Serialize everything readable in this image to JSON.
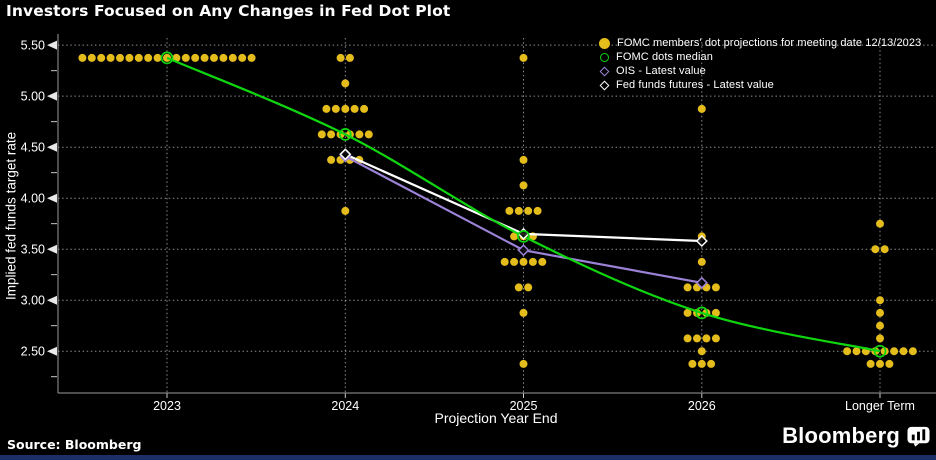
{
  "footer": {
    "source": "Source: Bloomberg",
    "brand": "Bloomberg"
  },
  "colors": {
    "background": "#000000",
    "text": "#FFFFFF",
    "grid": "#C8C8C8",
    "footer_bar": "#1D2F66"
  },
  "chart_data": {
    "type": "scatter",
    "title": "Investors Focused on Any Changes in Fed Dot Plot",
    "xlabel": "Projection Year End",
    "ylabel": "Implied fed funds target rate",
    "categories": [
      "2023",
      "2024",
      "2025",
      "2026",
      "Longer Term"
    ],
    "ylim": [
      2.09,
      5.57
    ],
    "y_ticks": [
      5.5,
      5.0,
      4.5,
      4.0,
      3.5,
      3.0,
      2.5
    ],
    "y_minor_step": 0.25,
    "grid": "dotted",
    "legend_position": "top-right",
    "series": [
      {
        "name": "FOMC members' dot projections for meeting date 12/13/2023",
        "type": "dots",
        "marker": "filled-circle",
        "color": "#E4BC1B",
        "points": [
          {
            "category": "2023",
            "value": 5.375,
            "count": 19
          },
          {
            "category": "2024",
            "value": 5.375,
            "count": 2
          },
          {
            "category": "2024",
            "value": 5.125,
            "count": 1
          },
          {
            "category": "2024",
            "value": 4.875,
            "count": 5
          },
          {
            "category": "2024",
            "value": 4.625,
            "count": 6
          },
          {
            "category": "2024",
            "value": 4.375,
            "count": 4
          },
          {
            "category": "2024",
            "value": 3.875,
            "count": 1
          },
          {
            "category": "2025",
            "value": 5.375,
            "count": 1
          },
          {
            "category": "2025",
            "value": 4.375,
            "count": 1
          },
          {
            "category": "2025",
            "value": 4.125,
            "count": 1
          },
          {
            "category": "2025",
            "value": 3.875,
            "count": 4
          },
          {
            "category": "2025",
            "value": 3.625,
            "count": 3
          },
          {
            "category": "2025",
            "value": 3.375,
            "count": 5
          },
          {
            "category": "2025",
            "value": 3.125,
            "count": 2
          },
          {
            "category": "2025",
            "value": 2.875,
            "count": 1
          },
          {
            "category": "2025",
            "value": 2.375,
            "count": 1
          },
          {
            "category": "2026",
            "value": 4.875,
            "count": 1
          },
          {
            "category": "2026",
            "value": 3.625,
            "count": 1
          },
          {
            "category": "2026",
            "value": 3.375,
            "count": 1
          },
          {
            "category": "2026",
            "value": 3.125,
            "count": 4
          },
          {
            "category": "2026",
            "value": 2.875,
            "count": 4
          },
          {
            "category": "2026",
            "value": 2.625,
            "count": 4
          },
          {
            "category": "2026",
            "value": 2.5,
            "count": 1
          },
          {
            "category": "2026",
            "value": 2.375,
            "count": 3
          },
          {
            "category": "Longer Term",
            "value": 3.75,
            "count": 1
          },
          {
            "category": "Longer Term",
            "value": 3.5,
            "count": 2
          },
          {
            "category": "Longer Term",
            "value": 3.0,
            "count": 1
          },
          {
            "category": "Longer Term",
            "value": 2.875,
            "count": 1
          },
          {
            "category": "Longer Term",
            "value": 2.75,
            "count": 1
          },
          {
            "category": "Longer Term",
            "value": 2.625,
            "count": 1
          },
          {
            "category": "Longer Term",
            "value": 2.5,
            "count": 8
          },
          {
            "category": "Longer Term",
            "value": 2.375,
            "count": 3
          }
        ]
      },
      {
        "name": "FOMC dots median",
        "type": "line",
        "marker": "open-circle",
        "color": "#0FD60F",
        "points": [
          {
            "category": "2023",
            "value": 5.375
          },
          {
            "category": "2024",
            "value": 4.625
          },
          {
            "category": "2025",
            "value": 3.625
          },
          {
            "category": "2026",
            "value": 2.875
          },
          {
            "category": "Longer Term",
            "value": 2.5
          }
        ]
      },
      {
        "name": "OIS - Latest value",
        "type": "line",
        "marker": "open-diamond",
        "color": "#9B82D6",
        "points": [
          {
            "category": "2024",
            "value": 4.41
          },
          {
            "category": "2025",
            "value": 3.49
          },
          {
            "category": "2026",
            "value": 3.17
          }
        ]
      },
      {
        "name": "Fed funds futures - Latest value",
        "type": "line",
        "marker": "open-diamond",
        "color": "#FFFFFF",
        "points": [
          {
            "category": "2024",
            "value": 4.43
          },
          {
            "category": "2025",
            "value": 3.65
          },
          {
            "category": "2026",
            "value": 3.58
          }
        ]
      }
    ]
  }
}
